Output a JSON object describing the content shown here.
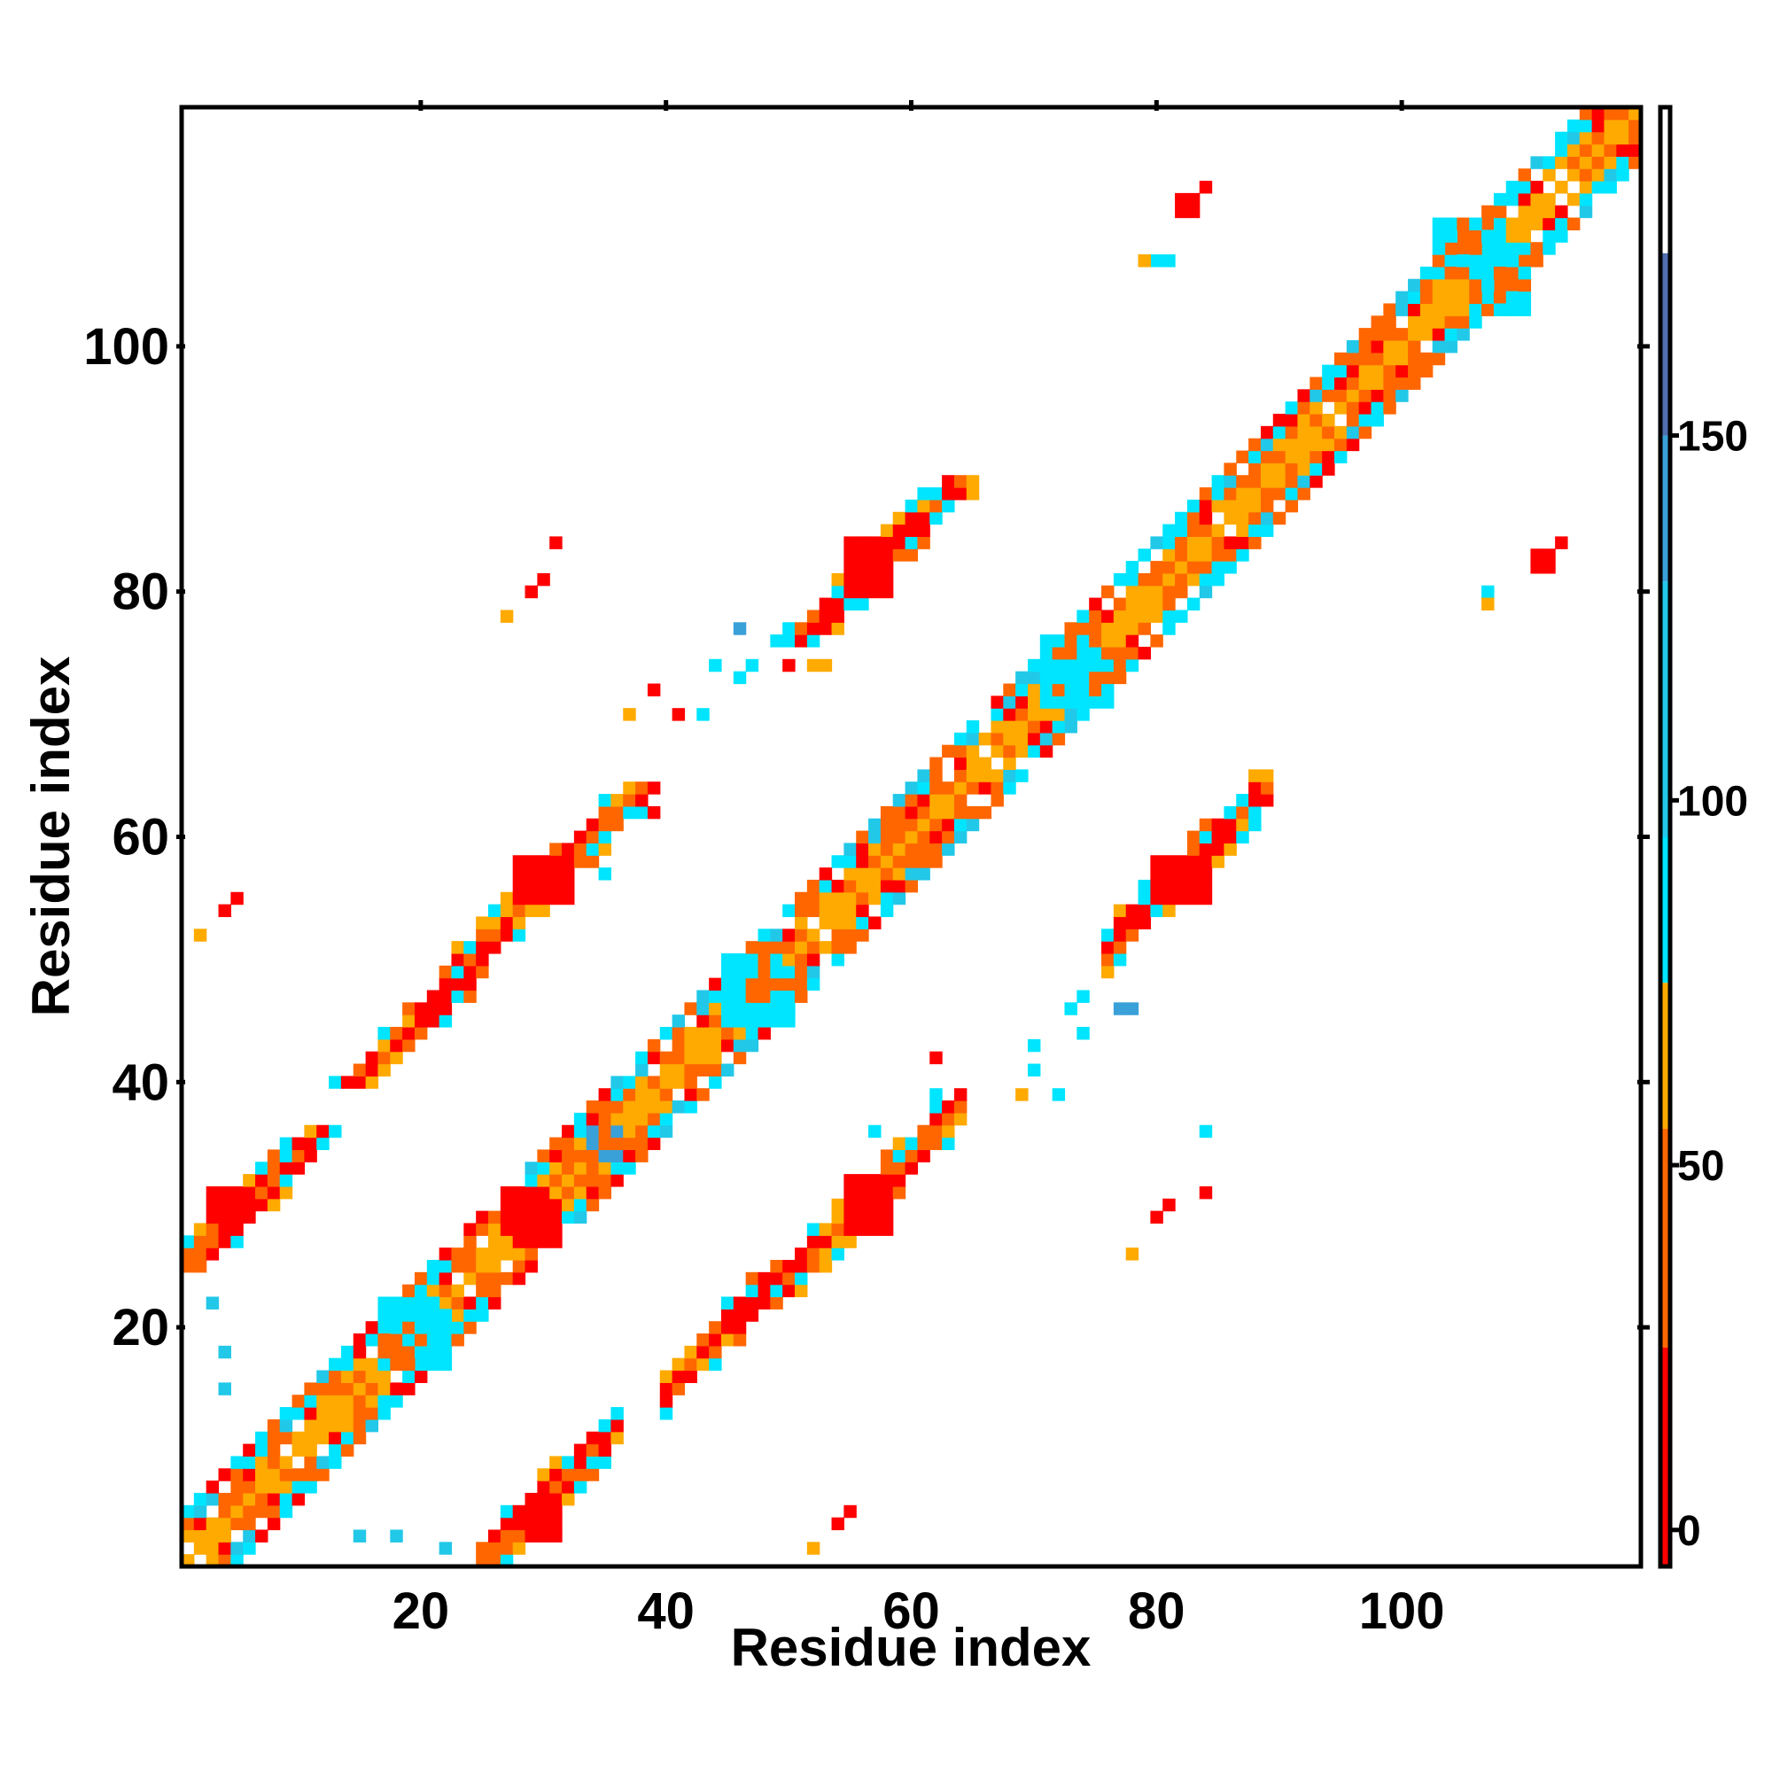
{
  "chart_data": {
    "type": "heatmap",
    "title": "",
    "xlabel": "Residue index",
    "ylabel": "Residue index",
    "xlim": [
      0.5,
      119.5
    ],
    "ylim": [
      0.5,
      119.5
    ],
    "x_ticks": [
      20,
      40,
      60,
      80,
      100
    ],
    "y_ticks": [
      20,
      40,
      60,
      80,
      100
    ],
    "colorbar": {
      "ticks": [
        0,
        50,
        100,
        150
      ],
      "range": [
        -5,
        195
      ],
      "bands": [
        {
          "from": -5,
          "to": 25,
          "color": "#ff0000"
        },
        {
          "from": 25,
          "to": 55,
          "color": "#ff6600"
        },
        {
          "from": 55,
          "to": 75,
          "color": "#ffaa00"
        },
        {
          "from": 75,
          "to": 95,
          "color": "#00e5ff"
        },
        {
          "from": 95,
          "to": 130,
          "color": "#22c8e8"
        },
        {
          "from": 130,
          "to": 150,
          "color": "#3aa0d8"
        },
        {
          "from": 150,
          "to": 175,
          "color": "#4f6fb0"
        },
        {
          "from": 175,
          "to": 195,
          "color": "#ffffff"
        }
      ]
    },
    "grid": false,
    "bands_description_free": true,
    "diagonal": {
      "from": 1,
      "to": 119
    },
    "segments": [
      {
        "i1": 1,
        "i2": 12,
        "j1": 25,
        "j2": 36
      },
      {
        "i1": 15,
        "i2": 24,
        "j1": 40,
        "j2": 49
      },
      {
        "i1": 24,
        "i2": 38,
        "j1": 50,
        "j2": 64
      },
      {
        "i1": 51,
        "i2": 64,
        "j1": 76,
        "j2": 90
      }
    ],
    "blobs": [
      {
        "x": 27,
        "y": 28,
        "w": 4,
        "h": 4,
        "v": 5
      },
      {
        "x": 55,
        "y": 28,
        "w": 4,
        "h": 4,
        "v": 5
      },
      {
        "x": 29,
        "y": 55,
        "w": 4,
        "h": 4,
        "v": 5
      },
      {
        "x": 55,
        "y": 80,
        "w": 4,
        "h": 4,
        "v": 5
      },
      {
        "x": 81,
        "y": 55,
        "w": 4,
        "h": 4,
        "v": 5
      },
      {
        "x": 3,
        "y": 29,
        "w": 4,
        "h": 3,
        "v": 5
      },
      {
        "x": 103,
        "y": 106,
        "w": 6,
        "h": 5,
        "v": 85
      },
      {
        "x": 71,
        "y": 71,
        "w": 6,
        "h": 5,
        "v": 85
      },
      {
        "x": 45,
        "y": 45,
        "w": 6,
        "h": 5,
        "v": 85
      },
      {
        "x": 17,
        "y": 17,
        "w": 6,
        "h": 5,
        "v": 85
      },
      {
        "x": 34,
        "y": 34,
        "w": 3,
        "h": 3,
        "v": 140
      }
    ],
    "points": [
      {
        "x": 111,
        "y": 82,
        "v": 5
      },
      {
        "x": 112,
        "y": 82,
        "v": 5
      },
      {
        "x": 111,
        "y": 83,
        "v": 5
      },
      {
        "x": 112,
        "y": 83,
        "v": 5
      },
      {
        "x": 113,
        "y": 84,
        "v": 5
      },
      {
        "x": 82,
        "y": 111,
        "v": 5
      },
      {
        "x": 83,
        "y": 111,
        "v": 5
      },
      {
        "x": 82,
        "y": 112,
        "v": 5
      },
      {
        "x": 83,
        "y": 112,
        "v": 5
      },
      {
        "x": 84,
        "y": 113,
        "v": 5
      },
      {
        "x": 29,
        "y": 80,
        "v": 5
      },
      {
        "x": 30,
        "y": 81,
        "v": 5
      },
      {
        "x": 31,
        "y": 84,
        "v": 5
      },
      {
        "x": 27,
        "y": 78,
        "v": 60
      },
      {
        "x": 80,
        "y": 29,
        "v": 5
      },
      {
        "x": 81,
        "y": 30,
        "v": 5
      },
      {
        "x": 84,
        "y": 31,
        "v": 5
      },
      {
        "x": 78,
        "y": 26,
        "v": 60
      },
      {
        "x": 54,
        "y": 4,
        "v": 5
      },
      {
        "x": 55,
        "y": 5,
        "v": 5
      },
      {
        "x": 52,
        "y": 2,
        "v": 60
      },
      {
        "x": 4,
        "y": 54,
        "v": 5
      },
      {
        "x": 5,
        "y": 55,
        "v": 5
      },
      {
        "x": 2,
        "y": 52,
        "v": 60
      },
      {
        "x": 107,
        "y": 80,
        "v": 85
      },
      {
        "x": 107,
        "y": 79,
        "v": 60
      },
      {
        "x": 80,
        "y": 107,
        "v": 85
      },
      {
        "x": 81,
        "y": 107,
        "v": 85
      },
      {
        "x": 79,
        "y": 107,
        "v": 60
      },
      {
        "x": 3,
        "y": 22,
        "v": 110
      },
      {
        "x": 4,
        "y": 18,
        "v": 110
      },
      {
        "x": 4,
        "y": 15,
        "v": 110
      },
      {
        "x": 15,
        "y": 3,
        "v": 110
      },
      {
        "x": 18,
        "y": 3,
        "v": 110
      },
      {
        "x": 22,
        "y": 2,
        "v": 110
      },
      {
        "x": 46,
        "y": 77,
        "v": 140
      },
      {
        "x": 77,
        "y": 46,
        "v": 140
      },
      {
        "x": 78,
        "y": 46,
        "v": 140
      },
      {
        "x": 46,
        "y": 73,
        "v": 85
      },
      {
        "x": 47,
        "y": 74,
        "v": 85
      },
      {
        "x": 44,
        "y": 74,
        "v": 85
      },
      {
        "x": 73,
        "y": 46,
        "v": 85
      },
      {
        "x": 74,
        "y": 44,
        "v": 85
      },
      {
        "x": 74,
        "y": 47,
        "v": 85
      },
      {
        "x": 49,
        "y": 76,
        "v": 85
      },
      {
        "x": 50,
        "y": 76,
        "v": 85
      },
      {
        "x": 52,
        "y": 74,
        "v": 60
      },
      {
        "x": 53,
        "y": 74,
        "v": 60
      },
      {
        "x": 50,
        "y": 74,
        "v": 5
      },
      {
        "x": 39,
        "y": 72,
        "v": 5
      },
      {
        "x": 37,
        "y": 70,
        "v": 60
      },
      {
        "x": 41,
        "y": 70,
        "v": 5
      },
      {
        "x": 43,
        "y": 70,
        "v": 85
      },
      {
        "x": 72,
        "y": 39,
        "v": 85
      },
      {
        "x": 70,
        "y": 41,
        "v": 85
      },
      {
        "x": 70,
        "y": 43,
        "v": 85
      },
      {
        "x": 69,
        "y": 39,
        "v": 60
      },
      {
        "x": 39,
        "y": 62,
        "v": 5
      },
      {
        "x": 37,
        "y": 62,
        "v": 85
      },
      {
        "x": 35,
        "y": 57,
        "v": 85
      },
      {
        "x": 62,
        "y": 42,
        "v": 5
      },
      {
        "x": 57,
        "y": 36,
        "v": 85
      },
      {
        "x": 62,
        "y": 39,
        "v": 85
      },
      {
        "x": 84,
        "y": 36,
        "v": 85
      }
    ]
  }
}
